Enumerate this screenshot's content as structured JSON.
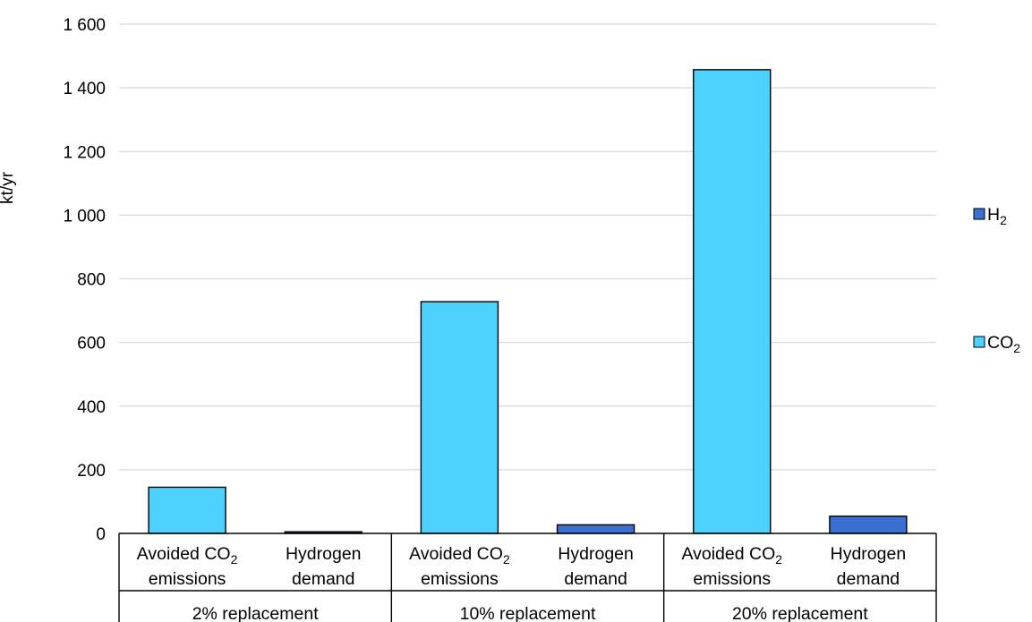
{
  "colors": {
    "CO2": "#4dd2ff",
    "H2": "#3a70d1"
  },
  "chart_data": {
    "type": "bar",
    "ylabel": "kt/yr",
    "ylim": [
      0,
      1600
    ],
    "y_ticks": [
      0,
      200,
      400,
      600,
      800,
      1000,
      1200,
      1400,
      1600
    ],
    "y_tick_labels": [
      "0",
      "200",
      "400",
      "600",
      "800",
      "1 000",
      "1 200",
      "1 400",
      "1 600"
    ],
    "grid": true,
    "legend_placement": "right",
    "legend": [
      {
        "key": "H2",
        "label_main": "H",
        "label_sub": "2"
      },
      {
        "key": "CO2",
        "label_main": "CO",
        "label_sub": "2"
      }
    ],
    "groups": [
      {
        "label": "2% replacement",
        "bars": [
          {
            "series": "CO2",
            "label_line1_main": "Avoided CO",
            "label_line1_sub": "2",
            "label_line2": "emissions",
            "value": 145
          },
          {
            "series": "H2",
            "label_line1_main": "Hydrogen",
            "label_line1_sub": "",
            "label_line2": "demand",
            "value": 5
          }
        ]
      },
      {
        "label": "10% replacement",
        "bars": [
          {
            "series": "CO2",
            "label_line1_main": "Avoided CO",
            "label_line1_sub": "2",
            "label_line2": "emissions",
            "value": 728
          },
          {
            "series": "H2",
            "label_line1_main": "Hydrogen",
            "label_line1_sub": "",
            "label_line2": "demand",
            "value": 27
          }
        ]
      },
      {
        "label": "20% replacement",
        "bars": [
          {
            "series": "CO2",
            "label_line1_main": "Avoided CO",
            "label_line1_sub": "2",
            "label_line2": "emissions",
            "value": 1457
          },
          {
            "series": "H2",
            "label_line1_main": "Hydrogen",
            "label_line1_sub": "",
            "label_line2": "demand",
            "value": 54
          }
        ]
      }
    ]
  }
}
